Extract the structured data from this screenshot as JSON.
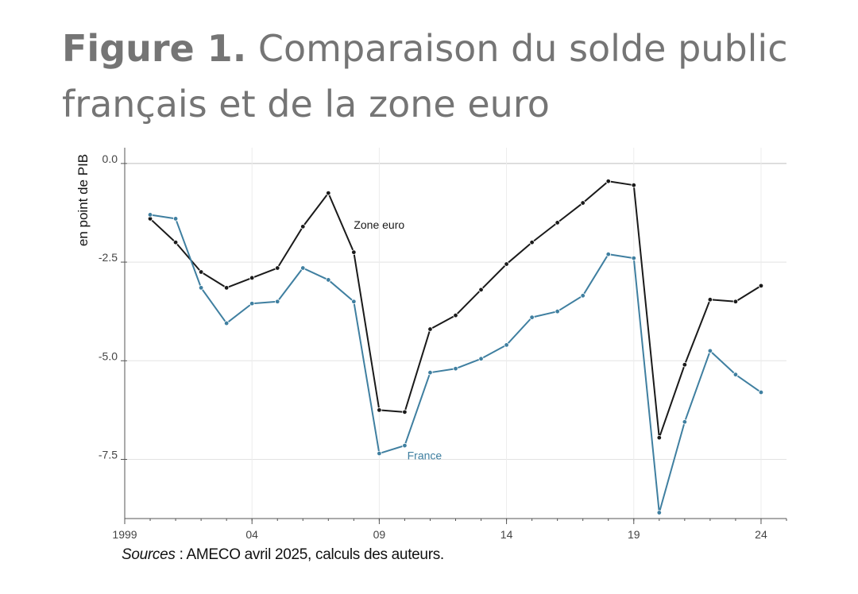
{
  "header": {
    "figure_label": "Figure 1.",
    "title": "Comparaison du solde public français et de la zone euro"
  },
  "source": {
    "label": "Sources",
    "text": " : AMECO avril 2025, calculs des auteurs."
  },
  "colors": {
    "zone_euro": "#1a1a1a",
    "france": "#3f7fa0",
    "grid": "#e3e3e3",
    "axis": "#555555"
  },
  "chart_data": {
    "type": "line",
    "title": "",
    "ylabel": "en point de PIB",
    "xlabel": "",
    "xlim": [
      1999,
      2025
    ],
    "ylim": [
      -9.0,
      0.4
    ],
    "x_ticks": [
      1999,
      2004,
      2009,
      2014,
      2019,
      2024
    ],
    "x_tick_labels": [
      "1999",
      "04",
      "09",
      "14",
      "19",
      "24"
    ],
    "y_ticks": [
      0.0,
      -2.5,
      -5.0,
      -7.5
    ],
    "y_tick_labels": [
      "0.0",
      "-2.5",
      "-5.0",
      "-7.5"
    ],
    "grid": true,
    "x": [
      2000,
      2001,
      2002,
      2003,
      2004,
      2005,
      2006,
      2007,
      2008,
      2009,
      2010,
      2011,
      2012,
      2013,
      2014,
      2015,
      2016,
      2017,
      2018,
      2019,
      2020,
      2021,
      2022,
      2023,
      2024
    ],
    "series": [
      {
        "name": "Zone euro",
        "color_key": "zone_euro",
        "label_at": [
          2008.0,
          -1.55
        ],
        "values": [
          -1.4,
          -2.0,
          -2.75,
          -3.15,
          -2.9,
          -2.65,
          -1.6,
          -0.75,
          -2.25,
          -6.25,
          -6.3,
          -4.2,
          -3.85,
          -3.2,
          -2.55,
          -2.0,
          -1.5,
          -1.0,
          -0.45,
          -0.55,
          -6.95,
          -5.1,
          -3.45,
          -3.5,
          -3.1
        ]
      },
      {
        "name": "France",
        "color_key": "france",
        "label_at": [
          2010.1,
          -7.4
        ],
        "values": [
          -1.3,
          -1.4,
          -3.15,
          -4.05,
          -3.55,
          -3.5,
          -2.65,
          -2.95,
          -3.5,
          -7.35,
          -7.15,
          -5.3,
          -5.2,
          -4.95,
          -4.6,
          -3.9,
          -3.75,
          -3.35,
          -2.3,
          -2.4,
          -8.85,
          -6.55,
          -4.75,
          -5.35,
          -5.8
        ]
      }
    ]
  }
}
